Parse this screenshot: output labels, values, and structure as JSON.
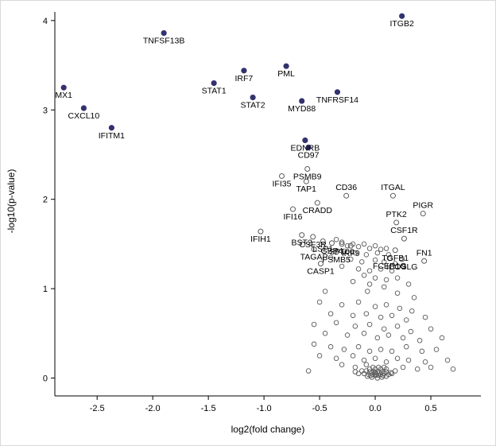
{
  "chart_data": {
    "type": "scatter",
    "title": "",
    "xlabel": "log2(fold change)",
    "ylabel": "-log10(p-value)",
    "xlim": [
      -2.88,
      0.95
    ],
    "ylim": [
      -0.2,
      4.15
    ],
    "x_ticks": [
      -2.5,
      -2.0,
      -1.5,
      -1.0,
      -0.5,
      0.0,
      0.5
    ],
    "x_tick_labels": [
      "-2.5",
      "-2.0",
      "-1.5",
      "-1.0",
      "-0.5",
      "0.0",
      "0.5"
    ],
    "y_ticks": [
      0,
      1,
      2,
      3,
      4
    ],
    "y_tick_labels": [
      "0",
      "1",
      "2",
      "3",
      "4"
    ],
    "grid": false,
    "legend": "none",
    "colors": {
      "significant_fill": "#32326e",
      "open_stroke": "#5a5a5a",
      "label": "#000000",
      "axis": "#000000"
    },
    "significant_points": [
      {
        "gene": "MX1",
        "x": -2.8,
        "y": 3.25
      },
      {
        "gene": "CXCL10",
        "x": -2.62,
        "y": 3.02
      },
      {
        "gene": "IFITM1",
        "x": -2.37,
        "y": 2.8
      },
      {
        "gene": "TNFSF13B",
        "x": -1.9,
        "y": 3.86
      },
      {
        "gene": "STAT1",
        "x": -1.45,
        "y": 3.3
      },
      {
        "gene": "IRF7",
        "x": -1.18,
        "y": 3.44
      },
      {
        "gene": "STAT2",
        "x": -1.1,
        "y": 3.14
      },
      {
        "gene": "PML",
        "x": -0.8,
        "y": 3.49
      },
      {
        "gene": "MYD88",
        "x": -0.66,
        "y": 3.1
      },
      {
        "gene": "TNFRSF14",
        "x": -0.34,
        "y": 3.2
      },
      {
        "gene": "ITGB2",
        "x": 0.24,
        "y": 4.05
      },
      {
        "gene": "EDNRB",
        "x": -0.63,
        "y": 2.66
      },
      {
        "gene": "CD97",
        "x": -0.6,
        "y": 2.58
      }
    ],
    "labeled_open_points": [
      {
        "gene": "PSMB9",
        "x": -0.61,
        "y": 2.34
      },
      {
        "gene": "IFI35",
        "x": -0.84,
        "y": 2.26
      },
      {
        "gene": "TAP1",
        "x": -0.62,
        "y": 2.2
      },
      {
        "gene": "CD36",
        "x": -0.26,
        "y": 2.04,
        "dy": -7
      },
      {
        "gene": "ITGAL",
        "x": 0.16,
        "y": 2.04,
        "dy": -7
      },
      {
        "gene": "CRADD",
        "x": -0.52,
        "y": 1.96
      },
      {
        "gene": "IFI16",
        "x": -0.74,
        "y": 1.89
      },
      {
        "gene": "PIGR",
        "x": 0.43,
        "y": 1.84,
        "dy": -7
      },
      {
        "gene": "PTK2",
        "x": 0.19,
        "y": 1.74,
        "dy": -7
      },
      {
        "gene": "IFIH1",
        "x": -1.03,
        "y": 1.64
      },
      {
        "gene": "BST2",
        "x": -0.66,
        "y": 1.6
      },
      {
        "gene": "CSF3R",
        "x": -0.56,
        "y": 1.58
      },
      {
        "gene": "LSP1",
        "x": -0.47,
        "y": 1.53
      },
      {
        "gene": "GBP4",
        "x": -0.39,
        "y": 1.51
      },
      {
        "gene": "SP100",
        "x": -0.3,
        "y": 1.5
      },
      {
        "gene": "IRF9",
        "x": -0.22,
        "y": 1.48
      },
      {
        "gene": "CSF1R",
        "x": 0.26,
        "y": 1.56,
        "dy": -7
      },
      {
        "gene": "TAGAP",
        "x": -0.55,
        "y": 1.44
      },
      {
        "gene": "PSMB5",
        "x": -0.35,
        "y": 1.41
      },
      {
        "gene": "TGFB1",
        "x": 0.18,
        "y": 1.43
      },
      {
        "gene": "FCER1G",
        "x": 0.13,
        "y": 1.34
      },
      {
        "gene": "ICOSLG",
        "x": 0.24,
        "y": 1.33
      },
      {
        "gene": "CASP1",
        "x": -0.49,
        "y": 1.28
      },
      {
        "gene": "FN1",
        "x": 0.44,
        "y": 1.31,
        "dy": -7
      }
    ],
    "background_points": [
      [
        -0.35,
        1.55
      ],
      [
        -0.3,
        1.52
      ],
      [
        -0.25,
        1.48
      ],
      [
        -0.2,
        1.5
      ],
      [
        -0.15,
        1.47
      ],
      [
        -0.1,
        1.5
      ],
      [
        -0.05,
        1.45
      ],
      [
        0.0,
        1.48
      ],
      [
        0.05,
        1.44
      ],
      [
        -0.28,
        1.42
      ],
      [
        -0.18,
        1.4
      ],
      [
        -0.08,
        1.38
      ],
      [
        0.02,
        1.4
      ],
      [
        0.1,
        1.45
      ],
      [
        0.12,
        1.38
      ],
      [
        -0.4,
        1.35
      ],
      [
        -0.22,
        1.33
      ],
      [
        -0.12,
        1.3
      ],
      [
        0.0,
        1.32
      ],
      [
        0.08,
        1.3
      ],
      [
        0.18,
        1.28
      ],
      [
        -0.3,
        1.25
      ],
      [
        -0.15,
        1.22
      ],
      [
        -0.05,
        1.2
      ],
      [
        0.05,
        1.22
      ],
      [
        0.15,
        1.2
      ],
      [
        0.25,
        1.25
      ],
      [
        -0.1,
        1.15
      ],
      [
        0.0,
        1.12
      ],
      [
        0.1,
        1.1
      ],
      [
        0.2,
        1.12
      ],
      [
        -0.2,
        1.08
      ],
      [
        -0.05,
        1.05
      ],
      [
        0.08,
        1.02
      ],
      [
        0.3,
        1.05
      ],
      [
        -0.45,
        0.97
      ],
      [
        -0.07,
        0.97
      ],
      [
        0.2,
        0.95
      ],
      [
        0.35,
        0.9
      ],
      [
        -0.5,
        0.85
      ],
      [
        -0.3,
        0.82
      ],
      [
        -0.15,
        0.85
      ],
      [
        0.0,
        0.8
      ],
      [
        0.1,
        0.82
      ],
      [
        0.22,
        0.78
      ],
      [
        0.33,
        0.75
      ],
      [
        -0.4,
        0.72
      ],
      [
        -0.2,
        0.7
      ],
      [
        -0.08,
        0.72
      ],
      [
        0.05,
        0.68
      ],
      [
        0.15,
        0.7
      ],
      [
        0.28,
        0.65
      ],
      [
        0.45,
        0.68
      ],
      [
        -0.55,
        0.6
      ],
      [
        -0.35,
        0.62
      ],
      [
        -0.18,
        0.58
      ],
      [
        -0.05,
        0.6
      ],
      [
        0.08,
        0.55
      ],
      [
        0.2,
        0.58
      ],
      [
        0.32,
        0.52
      ],
      [
        0.5,
        0.55
      ],
      [
        -0.45,
        0.5
      ],
      [
        -0.25,
        0.48
      ],
      [
        -0.1,
        0.5
      ],
      [
        0.02,
        0.45
      ],
      [
        0.12,
        0.48
      ],
      [
        0.25,
        0.45
      ],
      [
        0.4,
        0.42
      ],
      [
        0.6,
        0.45
      ],
      [
        -0.55,
        0.38
      ],
      [
        -0.4,
        0.35
      ],
      [
        -0.28,
        0.32
      ],
      [
        -0.15,
        0.35
      ],
      [
        -0.05,
        0.3
      ],
      [
        0.05,
        0.32
      ],
      [
        0.15,
        0.3
      ],
      [
        0.28,
        0.35
      ],
      [
        0.42,
        0.3
      ],
      [
        0.55,
        0.32
      ],
      [
        -0.5,
        0.25
      ],
      [
        -0.35,
        0.22
      ],
      [
        -0.2,
        0.25
      ],
      [
        -0.1,
        0.2
      ],
      [
        0.0,
        0.22
      ],
      [
        0.1,
        0.18
      ],
      [
        0.2,
        0.22
      ],
      [
        0.3,
        0.2
      ],
      [
        0.45,
        0.18
      ],
      [
        0.65,
        0.2
      ],
      [
        -0.3,
        0.15
      ],
      [
        -0.18,
        0.12
      ],
      [
        -0.08,
        0.15
      ],
      [
        0.25,
        0.12
      ],
      [
        0.38,
        0.1
      ],
      [
        0.5,
        0.12
      ],
      [
        0.7,
        0.1
      ],
      [
        -0.6,
        0.08
      ],
      [
        -0.12,
        0.08
      ],
      [
        -0.1,
        0.05
      ],
      [
        -0.08,
        0.08
      ],
      [
        -0.06,
        0.04
      ],
      [
        -0.05,
        0.07
      ],
      [
        -0.04,
        0.03
      ],
      [
        -0.03,
        0.06
      ],
      [
        -0.02,
        0.04
      ],
      [
        -0.01,
        0.07
      ],
      [
        0.0,
        0.03
      ],
      [
        0.0,
        0.06
      ],
      [
        0.01,
        0.04
      ],
      [
        0.02,
        0.07
      ],
      [
        0.03,
        0.03
      ],
      [
        0.04,
        0.06
      ],
      [
        0.05,
        0.04
      ],
      [
        0.06,
        0.07
      ],
      [
        0.07,
        0.03
      ],
      [
        0.08,
        0.05
      ],
      [
        0.1,
        0.07
      ],
      [
        0.12,
        0.04
      ],
      [
        0.14,
        0.06
      ],
      [
        -0.05,
        0.1
      ],
      [
        0.0,
        0.1
      ],
      [
        0.05,
        0.1
      ],
      [
        0.1,
        0.1
      ],
      [
        -0.02,
        0.12
      ],
      [
        0.03,
        0.12
      ],
      [
        0.08,
        0.12
      ],
      [
        -0.15,
        0.05
      ],
      [
        0.15,
        0.05
      ],
      [
        0.18,
        0.08
      ],
      [
        -0.18,
        0.07
      ],
      [
        0.02,
        0.0
      ],
      [
        -0.03,
        0.01
      ],
      [
        0.06,
        0.01
      ],
      [
        0.1,
        0.02
      ],
      [
        -0.07,
        0.02
      ]
    ]
  }
}
